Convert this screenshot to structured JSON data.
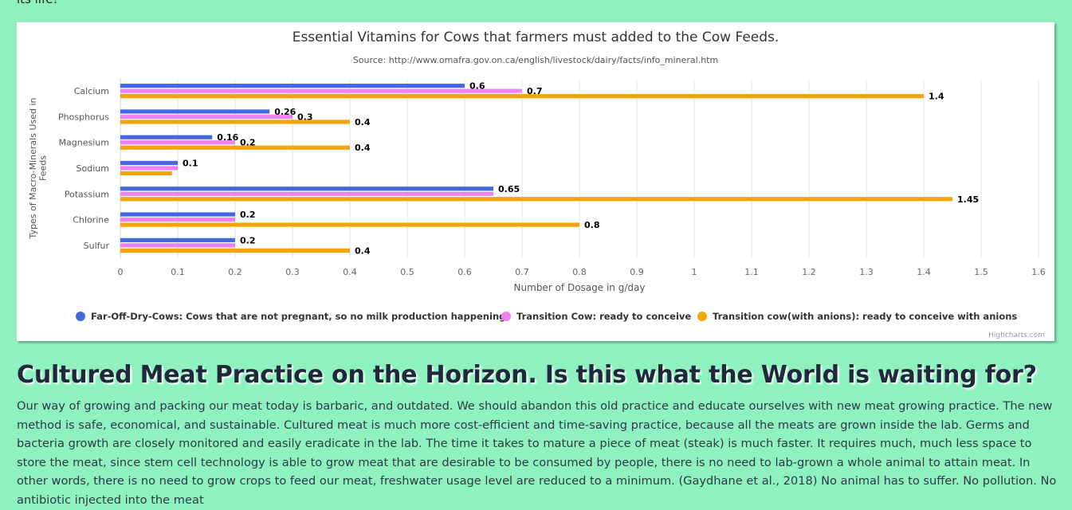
{
  "page": {
    "top_text": "its life!",
    "article_title": "Cultured Meat Practice on the Horizon. Is this what the World is waiting for?",
    "article_body": "Our way of growing and packing our meat today is barbaric, and outdated. We should abandon this old practice and educate ourselves with new meat growing practice. The new method is safe, economical, and sustainable. Cultured meat is much more cost-efficient and time-saving practice, because all the meats are grown inside the lab. Germs and bacteria growth are closely monitored and easily eradicate in the lab. The time it takes to mature a piece of meat (steak) is much faster. It requires much, much less space to store the meat, since stem cell technology is able to grow meat that are desirable to be consumed by people, there is no need to lab-grown a whole animal to attain meat. In other words, there is no need to grow crops to feed our meat, freshwater usage level are reduced to a minimum. (Gaydhane et al., 2018) No animal has to suffer. No pollution. No antibiotic injected into the meat"
  },
  "chart_data": {
    "type": "bar",
    "orientation": "horizontal",
    "title": "Essential Vitamins for Cows that farmers must added to the Cow Feeds.",
    "subtitle": "Source: http://www.omafra.gov.on.ca/english/livestock/dairy/facts/info_mineral.htm",
    "xlabel": "Number of Dosage in g/day",
    "ylabel": "Types of Macro-Minerals Used in Feeds",
    "categories": [
      "Calcium",
      "Phosphorus",
      "Magnesium",
      "Sodium",
      "Potassium",
      "Chlorine",
      "Sulfur"
    ],
    "xlim": [
      0,
      1.6
    ],
    "ticks": [
      "0",
      "0.1",
      "0.2",
      "0.3",
      "0.4",
      "0.5",
      "0.6",
      "0.7",
      "0.8",
      "0.9",
      "1",
      "1.1",
      "1.2",
      "1.3",
      "1.4",
      "1.5",
      "1.6"
    ],
    "grid": true,
    "legend_position": "bottom",
    "credits": "Highcharts.com",
    "series": [
      {
        "name": "Far-Off-Dry-Cows: Cows that are not pregnant, so no milk production happening",
        "color": "#4169e1",
        "values": [
          0.6,
          0.26,
          0.16,
          0.1,
          0.65,
          0.2,
          0.2
        ],
        "labels": [
          "0.6",
          "0.26",
          "0.16",
          "0.1",
          "0.65",
          "0.2",
          "0.2"
        ]
      },
      {
        "name": "Transition Cow: ready to conceive",
        "color": "#ee82ee",
        "values": [
          0.7,
          0.3,
          0.2,
          0.1,
          0.65,
          0.2,
          0.2
        ],
        "labels": [
          "0.7",
          "0.3",
          "0.2",
          "",
          "",
          "",
          ""
        ]
      },
      {
        "name": "Transition cow(with anions): ready to conceive with anions",
        "color": "#f5a30b",
        "values": [
          1.4,
          0.4,
          0.4,
          0.09,
          1.45,
          0.8,
          0.4
        ],
        "labels": [
          "1.4",
          "0.4",
          "0.4",
          "",
          "1.45",
          "0.8",
          "0.4"
        ]
      }
    ]
  }
}
